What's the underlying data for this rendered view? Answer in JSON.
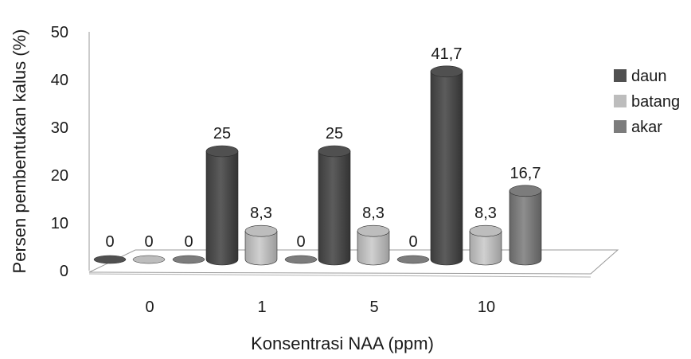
{
  "chart_data": {
    "type": "bar",
    "title": "",
    "xlabel": "Konsentrasi NAA (ppm)",
    "ylabel": "Persen pembentukan kalus (%)",
    "ylim": [
      0,
      50
    ],
    "yticks": [
      "0",
      "10",
      "20",
      "30",
      "40",
      "50"
    ],
    "categories": [
      "0",
      "1",
      "5",
      "10"
    ],
    "series": [
      {
        "name": "daun",
        "values": [
          0,
          25,
          25,
          41.7
        ],
        "labels": [
          "0",
          "25",
          "25",
          "41,7"
        ],
        "color": "#505050"
      },
      {
        "name": "batang",
        "values": [
          0,
          8.3,
          8.3,
          8.3
        ],
        "labels": [
          "0",
          "8,3",
          "8,3",
          "8,3"
        ],
        "color": "#bdbdbd"
      },
      {
        "name": "akar",
        "values": [
          0,
          0,
          0,
          16.7
        ],
        "labels": [
          "0",
          "0",
          "0",
          "16,7"
        ],
        "color": "#7c7c7c"
      }
    ],
    "legend": "right",
    "grid": false,
    "style": "3d-cylinder"
  }
}
